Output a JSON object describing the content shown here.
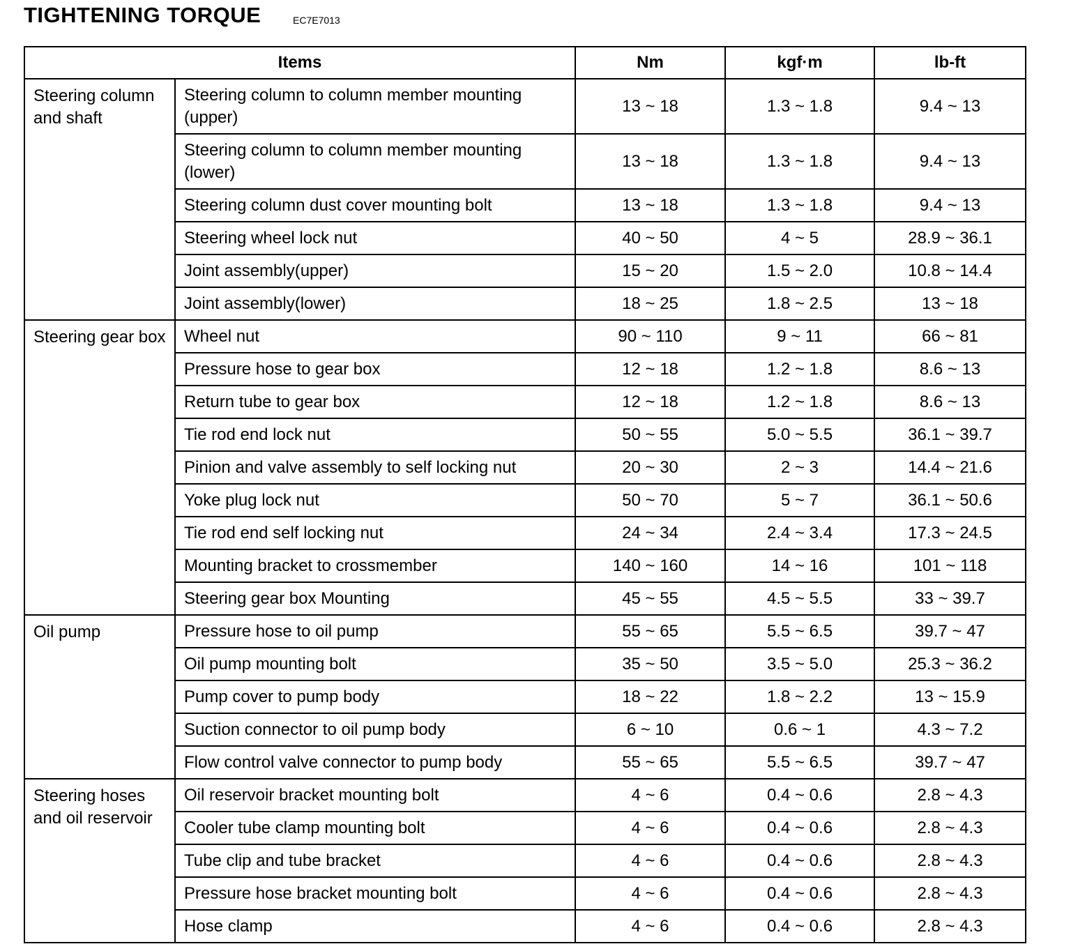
{
  "header": {
    "title": "TIGHTENING TORQUE",
    "code": "EC7E7013"
  },
  "table": {
    "columns": [
      "Items",
      "Nm",
      "kgf·m",
      "lb-ft"
    ],
    "groups": [
      {
        "name": "Steering column and shaft",
        "rows": [
          [
            "Steering column to column member mounting (upper)",
            "13 ~ 18",
            "1.3 ~ 1.8",
            "9.4 ~ 13"
          ],
          [
            "Steering column to column member mounting (lower)",
            "13 ~ 18",
            "1.3 ~ 1.8",
            "9.4 ~ 13"
          ],
          [
            "Steering column dust cover mounting bolt",
            "13 ~ 18",
            "1.3 ~ 1.8",
            "9.4 ~ 13"
          ],
          [
            "Steering wheel lock nut",
            "40 ~ 50",
            "4 ~ 5",
            "28.9 ~ 36.1"
          ],
          [
            "Joint assembly(upper)",
            "15 ~ 20",
            "1.5 ~ 2.0",
            "10.8 ~ 14.4"
          ],
          [
            "Joint assembly(lower)",
            "18 ~ 25",
            "1.8 ~ 2.5",
            "13 ~ 18"
          ]
        ]
      },
      {
        "name": "Steering gear box",
        "rows": [
          [
            "Wheel nut",
            "90 ~ 110",
            "9 ~ 11",
            "66 ~ 81"
          ],
          [
            "Pressure hose to gear box",
            "12 ~ 18",
            "1.2 ~ 1.8",
            "8.6 ~ 13"
          ],
          [
            "Return tube to gear box",
            "12 ~ 18",
            "1.2 ~ 1.8",
            "8.6 ~ 13"
          ],
          [
            "Tie rod end lock nut",
            "50 ~ 55",
            "5.0 ~ 5.5",
            "36.1 ~ 39.7"
          ],
          [
            "Pinion and valve assembly to self locking nut",
            "20 ~ 30",
            "2 ~ 3",
            "14.4 ~ 21.6"
          ],
          [
            "Yoke plug lock nut",
            "50 ~ 70",
            "5 ~ 7",
            "36.1 ~ 50.6"
          ],
          [
            "Tie rod end self locking nut",
            "24 ~ 34",
            "2.4 ~ 3.4",
            "17.3 ~ 24.5"
          ],
          [
            "Mounting bracket to crossmember",
            "140 ~ 160",
            "14 ~ 16",
            "101 ~ 118"
          ],
          [
            "Steering gear box Mounting",
            "45 ~ 55",
            "4.5 ~ 5.5",
            "33 ~ 39.7"
          ]
        ]
      },
      {
        "name": "Oil pump",
        "rows": [
          [
            "Pressure hose to oil pump",
            "55 ~ 65",
            "5.5 ~ 6.5",
            "39.7 ~ 47"
          ],
          [
            "Oil pump mounting bolt",
            "35 ~ 50",
            "3.5 ~ 5.0",
            "25.3 ~ 36.2"
          ],
          [
            "Pump cover to pump body",
            "18 ~ 22",
            "1.8 ~ 2.2",
            "13 ~ 15.9"
          ],
          [
            "Suction connector to oil pump body",
            "6 ~ 10",
            "0.6 ~ 1",
            "4.3 ~ 7.2"
          ],
          [
            "Flow control valve connector to pump body",
            "55 ~ 65",
            "5.5 ~ 6.5",
            "39.7 ~ 47"
          ]
        ]
      },
      {
        "name": "Steering hoses and oil reservoir",
        "rows": [
          [
            "Oil reservoir bracket mounting bolt",
            "4 ~ 6",
            "0.4 ~ 0.6",
            "2.8 ~ 4.3"
          ],
          [
            "Cooler tube clamp mounting bolt",
            "4 ~ 6",
            "0.4 ~ 0.6",
            "2.8 ~ 4.3"
          ],
          [
            "Tube clip and tube bracket",
            "4 ~ 6",
            "0.4 ~ 0.6",
            "2.8 ~ 4.3"
          ],
          [
            "Pressure hose bracket mounting bolt",
            "4 ~ 6",
            "0.4 ~ 0.6",
            "2.8 ~ 4.3"
          ],
          [
            "Hose clamp",
            "4 ~ 6",
            "0.4 ~ 0.6",
            "2.8 ~ 4.3"
          ]
        ]
      }
    ]
  }
}
